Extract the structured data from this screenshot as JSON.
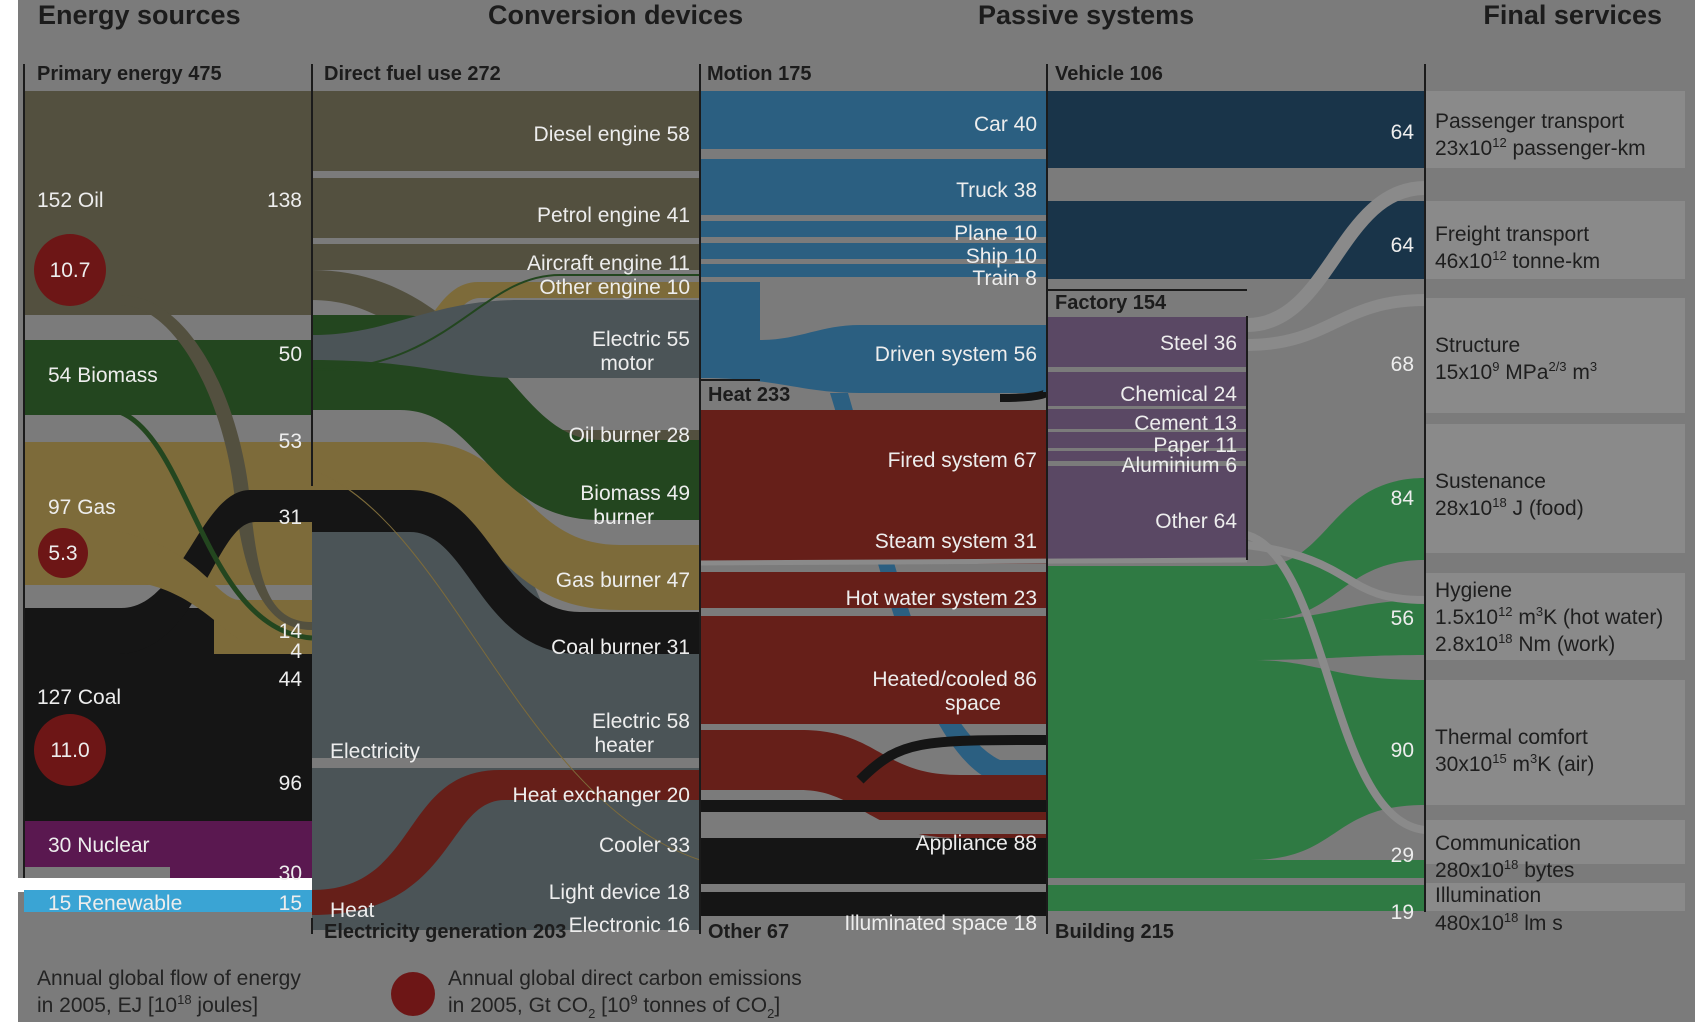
{
  "titles": {
    "sources": "Energy sources",
    "conversion": "Conversion devices",
    "passive": "Passive systems",
    "services": "Final services"
  },
  "headers": {
    "primary": "Primary energy  475",
    "direct": "Direct fuel use  272",
    "elecgen": "Electricity generation  203",
    "motion": "Motion 175",
    "heat": "Heat  233",
    "other": "Other  67",
    "vehicle": "Vehicle  106",
    "factory": "Factory  154",
    "building": "Building  215"
  },
  "sources": {
    "oil": "152  Oil",
    "biomass": "54  Biomass",
    "gas": "97  Gas",
    "coal": "127  Coal",
    "nuclear": "30  Nuclear",
    "renewable": "15  Renewable"
  },
  "emissions": {
    "oil": "10.7",
    "gas": "5.3",
    "coal": "11.0"
  },
  "split_values": {
    "oil_direct": "138",
    "biomass_direct": "50",
    "gas_direct": "53",
    "coal_direct": "31",
    "oil_elec": "14",
    "biomass_elec": "4",
    "gas_elec": "44",
    "coal_elec": "96",
    "nuclear_elec": "30",
    "renewable_elec": "15"
  },
  "mid_labels": {
    "electricity": "Electricity",
    "heat": "Heat"
  },
  "devices": {
    "diesel": "Diesel engine  58",
    "petrol": "Petrol engine  41",
    "aircraft": "Aircraft engine  11",
    "other_engine": "Other engine  10",
    "electric_motor_1": "Electric  55",
    "electric_motor_2": "motor",
    "oil_burner": "Oil burner  28",
    "biomass_burner_1": "Biomass  49",
    "biomass_burner_2": "burner",
    "gas_burner": "Gas burner  47",
    "coal_burner": "Coal burner  31",
    "electric_heater_1": "Electric  58",
    "electric_heater_2": "heater",
    "heat_exchanger": "Heat exchanger  20",
    "cooler": "Cooler  33",
    "light_device": "Light device  18",
    "electronic": "Electronic  16"
  },
  "passive": {
    "car": "Car  40",
    "truck": "Truck  38",
    "plane": "Plane  10",
    "ship": "Ship  10",
    "train": "Train    8",
    "driven": "Driven system  56",
    "fired": "Fired system  67",
    "steam": "Steam system  31",
    "hotwater": "Hot water system  23",
    "heated_1": "Heated/cooled  86",
    "heated_2": "space",
    "appliance": "Appliance  88",
    "illuminated": "Illuminated space  18",
    "steel": "Steel  36",
    "chemical": "Chemical  24",
    "cement": "Cement  13",
    "paper": "Paper  11",
    "aluminium": "Aluminium    6",
    "other": "Other  64"
  },
  "service_values": {
    "passenger": "64",
    "freight": "64",
    "structure": "68",
    "sustenance": "84",
    "hygiene": "56",
    "thermal": "90",
    "communication": "29",
    "illumination": "19"
  },
  "services": {
    "passenger_1": "Passenger transport",
    "passenger_2": "23x10",
    "passenger_2_sup": "12",
    "passenger_2_unit": " passenger-km",
    "freight_1": "Freight transport",
    "freight_2": "46x10",
    "freight_2_sup": "12",
    "freight_2_unit": " tonne-km",
    "structure_1": "Structure",
    "structure_2": "15x10",
    "structure_2_sup": "9",
    "structure_2_unit": "  MPa",
    "structure_2_sup2": "2/3",
    "structure_2_unit2": " m",
    "structure_2_sup3": "3",
    "sustenance_1": "Sustenance",
    "sustenance_2": "28x10",
    "sustenance_2_sup": "18",
    "sustenance_2_unit": " J (food)",
    "hygiene_1": "Hygiene",
    "hygiene_2": "1.5x10",
    "hygiene_2_sup": "12",
    "hygiene_2_unit": " m",
    "hygiene_2_sup2": "3",
    "hygiene_2_unit2": "K (hot water)",
    "hygiene_3": "2.8x10",
    "hygiene_3_sup": "18",
    "hygiene_3_unit": " Nm (work)",
    "thermal_1": "Thermal comfort",
    "thermal_2": "30x10",
    "thermal_2_sup": "15",
    "thermal_2_unit": " m",
    "thermal_2_sup2": "3",
    "thermal_2_unit2": "K (air)",
    "communication_1": "Communication",
    "communication_2": "280x10",
    "communication_2_sup": "18",
    "communication_2_unit": " bytes",
    "illumination_1": "Illumination",
    "illumination_2": "480x10",
    "illumination_2_sup": "18",
    "illumination_2_unit": " lm s"
  },
  "legend": {
    "flow_1": "Annual global flow of energy",
    "flow_2": "in 2005, EJ  [10",
    "flow_2_sup": "18",
    "flow_2_end": " joules]",
    "carbon_1": "Annual global direct carbon emissions",
    "carbon_2": "in 2005, Gt CO",
    "carbon_2_sub": "2",
    "carbon_2_mid": "  [10",
    "carbon_2_sup": "9",
    "carbon_2_end": " tonnes of CO",
    "carbon_2_sub2": "2",
    "carbon_2_close": "]"
  },
  "colors": {
    "background": "#7b7b7b",
    "oil": "#53503f",
    "biomass": "#23461f",
    "gas": "#7d6b3a",
    "coal": "#151515",
    "nuclear": "#5a1850",
    "renewable": "#3aa4d4",
    "electricity": "#4b5457",
    "motion": "#2b5f81",
    "vehicle": "#193449",
    "heat": "#661f19",
    "factory": "#5a4864",
    "building": "#2f7a43",
    "carbon_circle": "#6d1616",
    "service_box": "#8a8a8a"
  }
}
